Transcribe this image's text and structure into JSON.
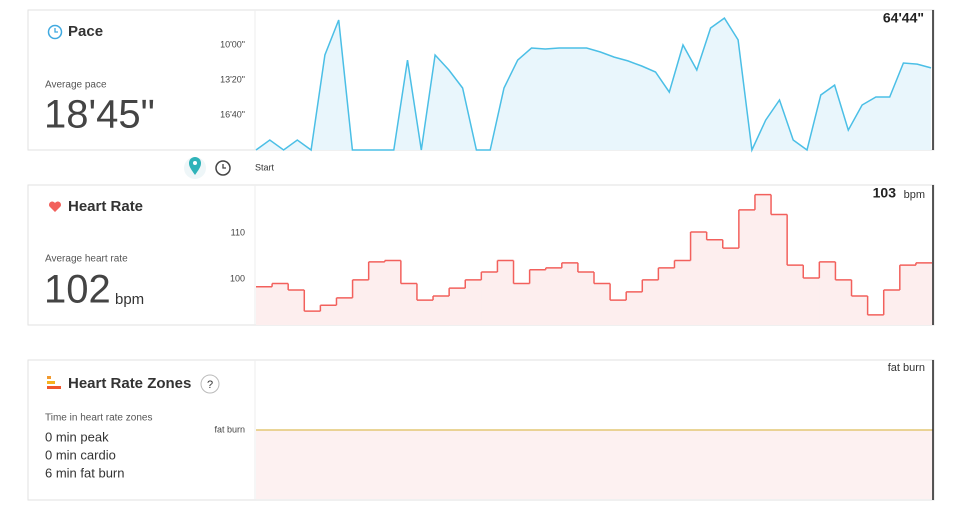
{
  "panels": [
    {
      "title": "Pace",
      "average_label": "Average pace",
      "average": "18'45\"",
      "marker": "64'44\""
    },
    {
      "title": "Heart Rate",
      "average_label": "Average heart rate",
      "average": 102,
      "unit": "bpm",
      "marker": 103,
      "marker_unit": "bpm"
    },
    {
      "title": "Heart Rate Zones",
      "help": "?",
      "zones_label": "Time in heart rate zones",
      "zones": [
        "0 min peak",
        "0 min cardio",
        "6 min fat burn"
      ],
      "band_label": "fat burn",
      "marker": "fat burn"
    }
  ],
  "timeline": {
    "start": "Start"
  },
  "chart_data": [
    {
      "type": "area",
      "color": "#4bbfe6",
      "fill": "#e9f6fc",
      "values": [
        1200,
        1143,
        1200,
        1143,
        1200,
        657,
        457,
        1200,
        1200,
        1200,
        1200,
        686,
        1200,
        657,
        743,
        846,
        1200,
        1200,
        846,
        686,
        617,
        623,
        617,
        617,
        617,
        640,
        669,
        691,
        720,
        754,
        869,
        600,
        743,
        503,
        446,
        571,
        1200,
        1029,
        914,
        1143,
        1200,
        886,
        829,
        1086,
        943,
        897,
        897,
        703,
        709,
        731
      ],
      "ylim": [
        1200,
        400
      ],
      "yticks": [
        {
          "value": 600,
          "label": "10'00\""
        },
        {
          "value": 800,
          "label": "13'20\""
        },
        {
          "value": 1000,
          "label": "16'40\""
        }
      ]
    },
    {
      "type": "step",
      "color": "#f2605c",
      "fill": "#fdeeee",
      "values": [
        98.3,
        99,
        97.6,
        93,
        94.3,
        95.9,
        99.8,
        103.7,
        104,
        99,
        95.4,
        96.3,
        98,
        99.8,
        101.5,
        104,
        99,
        102,
        102.4,
        103.5,
        101.5,
        99,
        95.4,
        97.2,
        99.8,
        102.4,
        104,
        110.2,
        108.5,
        106.7,
        115,
        118.3,
        114,
        103,
        100.2,
        103.7,
        99.8,
        96.3,
        92.2,
        97.6,
        103,
        103.5
      ],
      "ylim": [
        90,
        120.4
      ],
      "yticks": [
        100,
        110
      ]
    }
  ]
}
